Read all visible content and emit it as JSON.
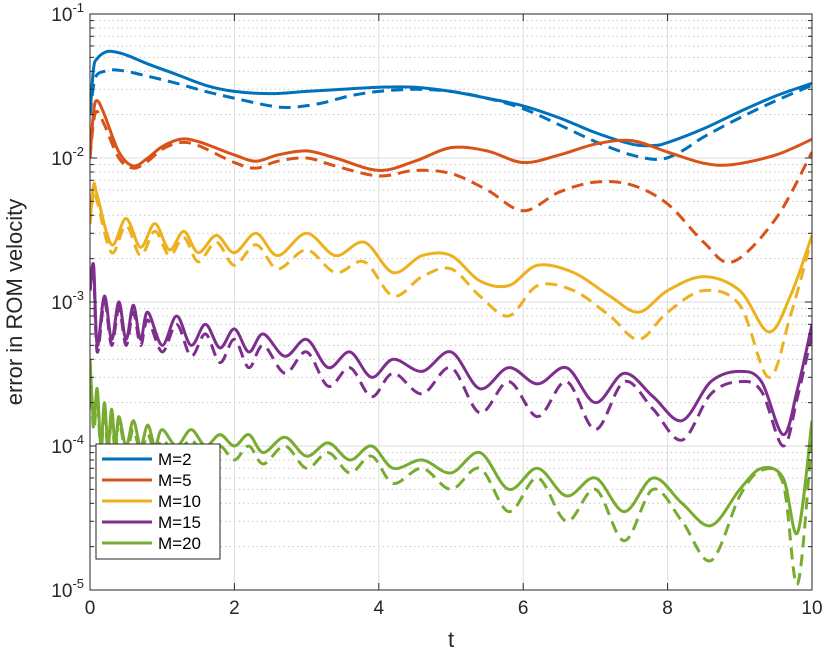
{
  "chart_data": {
    "type": "line",
    "xlabel": "t",
    "ylabel": "error in ROM velocity",
    "xlim": [
      0,
      10
    ],
    "ylim": [
      1e-05,
      0.1
    ],
    "yscale": "log",
    "grid": true,
    "minor_grid": true,
    "xticks": [
      0,
      2,
      4,
      6,
      8,
      10
    ],
    "yticks": [
      {
        "value": 1e-05,
        "label": "10",
        "exp": "-5"
      },
      {
        "value": 0.0001,
        "label": "10",
        "exp": "-4"
      },
      {
        "value": 0.001,
        "label": "10",
        "exp": "-3"
      },
      {
        "value": 0.01,
        "label": "10",
        "exp": "-2"
      },
      {
        "value": 0.1,
        "label": "10",
        "exp": "-1"
      }
    ],
    "legend": {
      "position": "bottom-left"
    },
    "series": [
      {
        "name": "M=2",
        "color": "#0072BD",
        "solid": {
          "x": [
            0,
            0.05,
            0.1,
            0.2,
            0.3,
            0.5,
            0.8,
            1.2,
            1.6,
            2.0,
            2.5,
            3.0,
            3.5,
            4.0,
            4.5,
            5.0,
            5.5,
            6.0,
            6.5,
            7.0,
            7.5,
            7.8,
            8.0,
            8.5,
            9.0,
            9.5,
            10.0
          ],
          "y": [
            0.02,
            0.042,
            0.049,
            0.054,
            0.055,
            0.052,
            0.045,
            0.038,
            0.032,
            0.029,
            0.028,
            0.029,
            0.03,
            0.031,
            0.031,
            0.029,
            0.026,
            0.023,
            0.019,
            0.015,
            0.0125,
            0.0122,
            0.0128,
            0.016,
            0.021,
            0.027,
            0.033
          ]
        },
        "dashed": {
          "x": [
            0,
            0.05,
            0.1,
            0.2,
            0.3,
            0.5,
            0.8,
            1.2,
            1.6,
            2.0,
            2.5,
            2.8,
            3.2,
            3.6,
            4.0,
            4.5,
            5.0,
            5.5,
            6.0,
            6.5,
            7.0,
            7.5,
            7.9,
            8.2,
            8.5,
            9.0,
            9.5,
            10.0
          ],
          "y": [
            0.02,
            0.032,
            0.038,
            0.04,
            0.041,
            0.04,
            0.037,
            0.033,
            0.029,
            0.026,
            0.023,
            0.0225,
            0.024,
            0.027,
            0.029,
            0.03,
            0.029,
            0.026,
            0.022,
            0.017,
            0.013,
            0.0105,
            0.0098,
            0.0112,
            0.014,
            0.019,
            0.025,
            0.032
          ]
        }
      },
      {
        "name": "M=5",
        "color": "#D95319",
        "solid": {
          "x": [
            0,
            0.05,
            0.1,
            0.2,
            0.4,
            0.6,
            0.8,
            1.0,
            1.25,
            1.5,
            2.0,
            2.3,
            2.6,
            3.0,
            3.4,
            4.0,
            4.5,
            5.0,
            5.5,
            6.0,
            6.5,
            7.0,
            7.5,
            8.0,
            8.5,
            8.9,
            9.5,
            10.0
          ],
          "y": [
            0.01,
            0.021,
            0.025,
            0.02,
            0.011,
            0.0088,
            0.01,
            0.012,
            0.0135,
            0.013,
            0.0105,
            0.0095,
            0.0105,
            0.0112,
            0.01,
            0.0082,
            0.0095,
            0.0118,
            0.0112,
            0.0093,
            0.0105,
            0.0125,
            0.0132,
            0.011,
            0.0092,
            0.009,
            0.0105,
            0.0135
          ]
        },
        "dashed": {
          "x": [
            0,
            0.05,
            0.1,
            0.2,
            0.4,
            0.6,
            0.8,
            1.0,
            1.25,
            1.5,
            2.0,
            2.3,
            2.6,
            3.0,
            3.4,
            4.0,
            4.5,
            5.0,
            5.5,
            6.0,
            6.5,
            7.0,
            7.5,
            8.0,
            8.5,
            8.9,
            9.5,
            10.0
          ],
          "y": [
            0.01,
            0.018,
            0.021,
            0.017,
            0.01,
            0.0085,
            0.0095,
            0.0115,
            0.0128,
            0.0122,
            0.0093,
            0.0085,
            0.0095,
            0.01,
            0.0088,
            0.0075,
            0.0082,
            0.0078,
            0.006,
            0.0043,
            0.0058,
            0.0068,
            0.0065,
            0.0048,
            0.0026,
            0.0019,
            0.0038,
            0.011
          ]
        }
      },
      {
        "name": "M=10",
        "color": "#EDB120",
        "solid": {
          "x": [
            0,
            0.05,
            0.1,
            0.3,
            0.5,
            0.7,
            0.9,
            1.1,
            1.3,
            1.5,
            1.75,
            2.0,
            2.3,
            2.6,
            3.0,
            3.4,
            3.8,
            4.2,
            4.6,
            5.0,
            5.4,
            5.8,
            6.2,
            6.7,
            7.2,
            7.6,
            8.0,
            8.5,
            9.0,
            9.4,
            9.7,
            10.0
          ],
          "y": [
            0.0035,
            0.0065,
            0.0055,
            0.0025,
            0.0038,
            0.0024,
            0.0035,
            0.0023,
            0.0031,
            0.0022,
            0.0029,
            0.0022,
            0.003,
            0.0021,
            0.003,
            0.0021,
            0.0026,
            0.0016,
            0.0021,
            0.0021,
            0.0014,
            0.0013,
            0.0018,
            0.0016,
            0.0011,
            0.00085,
            0.0012,
            0.0015,
            0.0012,
            0.00062,
            0.0011,
            0.0029
          ]
        },
        "dashed": {
          "x": [
            0,
            0.05,
            0.1,
            0.3,
            0.5,
            0.7,
            0.9,
            1.1,
            1.3,
            1.5,
            1.75,
            2.0,
            2.3,
            2.6,
            3.0,
            3.4,
            3.8,
            4.2,
            4.6,
            5.0,
            5.4,
            5.8,
            6.2,
            6.7,
            7.2,
            7.6,
            8.0,
            8.5,
            9.0,
            9.4,
            9.7,
            10.0
          ],
          "y": [
            0.0035,
            0.0058,
            0.005,
            0.0022,
            0.0034,
            0.0021,
            0.0031,
            0.0021,
            0.0028,
            0.0019,
            0.0026,
            0.0018,
            0.0025,
            0.0017,
            0.0023,
            0.0016,
            0.0019,
            0.0011,
            0.0015,
            0.0017,
            0.0011,
            0.0008,
            0.0013,
            0.0012,
            0.0008,
            0.00055,
            0.00085,
            0.0012,
            0.00095,
            0.0003,
            0.0008,
            0.0028
          ]
        }
      },
      {
        "name": "M=15",
        "color": "#7E2F8E",
        "solid": {
          "x": [
            0,
            0.05,
            0.1,
            0.2,
            0.3,
            0.4,
            0.5,
            0.6,
            0.7,
            0.8,
            1.0,
            1.2,
            1.4,
            1.6,
            1.8,
            2.0,
            2.2,
            2.4,
            2.7,
            3.0,
            3.3,
            3.6,
            3.9,
            4.2,
            4.6,
            5.0,
            5.4,
            5.8,
            6.2,
            6.6,
            7.0,
            7.4,
            7.8,
            8.2,
            8.6,
            9.0,
            9.3,
            9.6,
            9.8,
            10.0
          ],
          "y": [
            0.0012,
            0.0018,
            0.0005,
            0.0011,
            0.00055,
            0.001,
            0.00055,
            0.00095,
            0.00055,
            0.00085,
            0.0005,
            0.0008,
            0.0005,
            0.0007,
            0.00048,
            0.00065,
            0.00045,
            0.0006,
            0.00042,
            0.00055,
            0.00035,
            0.00045,
            0.0003,
            0.0004,
            0.00033,
            0.00045,
            0.00025,
            0.00035,
            0.00027,
            0.00035,
            0.0002,
            0.00032,
            0.00022,
            0.00015,
            0.00028,
            0.00033,
            0.00028,
            0.00012,
            0.00025,
            0.0007
          ]
        },
        "dashed": {
          "x": [
            0,
            0.05,
            0.1,
            0.2,
            0.3,
            0.4,
            0.5,
            0.6,
            0.7,
            0.8,
            1.0,
            1.2,
            1.4,
            1.6,
            1.8,
            2.0,
            2.2,
            2.4,
            2.7,
            3.0,
            3.3,
            3.6,
            3.9,
            4.2,
            4.6,
            5.0,
            5.4,
            5.8,
            6.2,
            6.6,
            7.0,
            7.4,
            7.8,
            8.2,
            8.6,
            9.0,
            9.3,
            9.6,
            9.8,
            10.0
          ],
          "y": [
            0.0012,
            0.0016,
            0.00045,
            0.001,
            0.0005,
            0.0009,
            0.0005,
            0.00085,
            0.0005,
            0.00075,
            0.00045,
            0.0007,
            0.00042,
            0.0006,
            0.00038,
            0.00055,
            0.00035,
            0.0005,
            0.00032,
            0.00045,
            0.00026,
            0.00035,
            0.00022,
            0.00032,
            0.00023,
            0.00035,
            0.00017,
            0.00028,
            0.00016,
            0.00028,
            0.00013,
            0.00028,
            0.00018,
            0.00011,
            0.00023,
            0.00028,
            0.00024,
            0.0001,
            0.00022,
            0.0006
          ]
        }
      },
      {
        "name": "M=20",
        "color": "#77AC30",
        "solid": {
          "x": [
            0,
            0.05,
            0.1,
            0.15,
            0.2,
            0.25,
            0.3,
            0.35,
            0.4,
            0.5,
            0.6,
            0.7,
            0.8,
            0.9,
            1.0,
            1.2,
            1.4,
            1.6,
            1.8,
            2.0,
            2.2,
            2.4,
            2.7,
            3.0,
            3.3,
            3.6,
            3.9,
            4.2,
            4.6,
            5.0,
            5.4,
            5.8,
            6.2,
            6.6,
            7.0,
            7.4,
            7.8,
            8.2,
            8.6,
            9.0,
            9.3,
            9.6,
            9.8,
            10.0
          ],
          "y": [
            0.0004,
            0.00015,
            0.00025,
            0.0001,
            0.0002,
            0.0001,
            0.00018,
            0.0001,
            0.00016,
            0.0001,
            0.00015,
            0.0001,
            0.00014,
            0.0001,
            0.00013,
            0.0001,
            0.00013,
            0.0001,
            0.00012,
            0.0001,
            0.00012,
            9e-05,
            0.000115,
            8.5e-05,
            0.000105,
            8e-05,
            0.0001,
            7e-05,
            8e-05,
            6.5e-05,
            9e-05,
            5e-05,
            7e-05,
            4.5e-05,
            6e-05,
            3.5e-05,
            6e-05,
            4e-05,
            2.8e-05,
            5e-05,
            7e-05,
            6e-05,
            2.5e-05,
            0.00015
          ]
        },
        "dashed": {
          "x": [
            0,
            0.05,
            0.1,
            0.15,
            0.2,
            0.25,
            0.3,
            0.35,
            0.4,
            0.5,
            0.6,
            0.7,
            0.8,
            0.9,
            1.0,
            1.2,
            1.4,
            1.6,
            1.8,
            2.0,
            2.2,
            2.4,
            2.7,
            3.0,
            3.3,
            3.6,
            3.9,
            4.2,
            4.6,
            5.0,
            5.4,
            5.8,
            6.2,
            6.6,
            7.0,
            7.4,
            7.8,
            8.2,
            8.6,
            9.0,
            9.3,
            9.6,
            9.8,
            10.0
          ],
          "y": [
            0.0004,
            0.00013,
            0.00022,
            9e-05,
            0.00018,
            9e-05,
            0.00016,
            9e-05,
            0.00015,
            9e-05,
            0.00013,
            9e-05,
            0.00012,
            9e-05,
            0.00011,
            9e-05,
            0.00011,
            8.5e-05,
            0.0001,
            8e-05,
            0.0001,
            7.5e-05,
            0.0001,
            7e-05,
            9e-05,
            6.5e-05,
            8.5e-05,
            5.5e-05,
            7e-05,
            5e-05,
            7e-05,
            3.5e-05,
            6e-05,
            3e-05,
            5e-05,
            2.2e-05,
            5e-05,
            3e-05,
            1.6e-05,
            4.5e-05,
            6.8e-05,
            5.5e-05,
            1.1e-05,
            0.00012
          ]
        }
      }
    ]
  }
}
